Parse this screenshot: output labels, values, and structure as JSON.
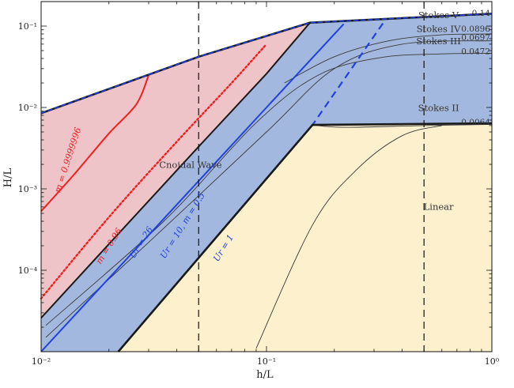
{
  "chart_data": {
    "type": "area",
    "title": "",
    "xlabel": "h/L",
    "ylabel": "H/L",
    "xscale": "log",
    "yscale": "log",
    "xlim": [
      0.01,
      1.0
    ],
    "ylim": [
      1e-05,
      0.2
    ],
    "grid": false,
    "x_tick_labels": [
      "10⁻²",
      "10⁻¹",
      "10⁰"
    ],
    "y_tick_labels": [
      "10⁻¹",
      "10⁻²",
      "10⁻³",
      "10⁻⁴"
    ],
    "vertical_lines": [
      0.05,
      0.5
    ],
    "colors": {
      "cnoidal_fill": "#efc4c8",
      "stokes_fill": "#a3b8df",
      "linear_fill": "#fdf0cc",
      "boundary": "#1a1a1a",
      "ur_lines": "#2040e0",
      "m_lines": "#ee2020",
      "thin_curves": "#3a3a3a"
    },
    "regions": [
      {
        "name": "Cnoidal Wave",
        "label_at": [
          0.046,
          0.0018
        ]
      },
      {
        "name": "Stokes V",
        "label_at": [
          0.58,
          0.125
        ]
      },
      {
        "name": "Stokes IV",
        "label_at": [
          0.58,
          0.085
        ]
      },
      {
        "name": "Stokes III",
        "label_at": [
          0.58,
          0.06
        ]
      },
      {
        "name": "Stokes II",
        "label_at": [
          0.58,
          0.009
        ]
      },
      {
        "name": "Linear",
        "label_at": [
          0.58,
          0.00055
        ]
      }
    ],
    "level_values": [
      {
        "label": "0.14",
        "y": 0.14
      },
      {
        "label": "0.0896",
        "y": 0.0896
      },
      {
        "label": "0.0697",
        "y": 0.0697
      },
      {
        "label": "0.0472",
        "y": 0.0472
      },
      {
        "label": "0.0064",
        "y": 0.0064
      }
    ],
    "upper_boundary": [
      [
        0.01,
        0.0085
      ],
      [
        0.05,
        0.042
      ],
      [
        0.156,
        0.11
      ],
      [
        1.0,
        0.142
      ]
    ],
    "linear_upper_boundary": [
      [
        0.022,
        1e-05
      ],
      [
        0.16,
        0.0061
      ],
      [
        1.0,
        0.0064
      ]
    ],
    "series": [
      {
        "name": "m = 0.9999996",
        "style": "solid",
        "color": "red",
        "points": [
          [
            0.01,
            0.00053
          ],
          [
            0.014,
            0.0015
          ],
          [
            0.02,
            0.0048
          ],
          [
            0.0265,
            0.011
          ],
          [
            0.03,
            0.025
          ]
        ]
      },
      {
        "name": "m = 0.96",
        "style": "dotted",
        "color": "red",
        "points": [
          [
            0.01,
            4.5e-05
          ],
          [
            0.02,
            0.00045
          ],
          [
            0.04,
            0.0038
          ],
          [
            0.07,
            0.02
          ],
          [
            0.1,
            0.06
          ]
        ]
      },
      {
        "name": "Ur = 26",
        "style": "solid",
        "color": "black",
        "points": [
          [
            0.01,
            2.6e-05
          ],
          [
            0.02,
            0.00021
          ],
          [
            0.05,
            0.0033
          ],
          [
            0.1,
            0.026
          ],
          [
            0.156,
            0.11
          ]
        ]
      },
      {
        "name": "Ur = 10, m = 0.5",
        "style": "solid",
        "color": "blue",
        "points": [
          [
            0.01,
            1e-05
          ],
          [
            0.02,
            8e-05
          ],
          [
            0.05,
            0.00125
          ],
          [
            0.1,
            0.01
          ],
          [
            0.22,
            0.106
          ]
        ]
      },
      {
        "name": "Ur = 1",
        "style": "dashed",
        "color": "blue",
        "points": [
          [
            0.022,
            1e-05
          ],
          [
            0.16,
            0.0061
          ],
          [
            0.33,
            0.11
          ]
        ]
      }
    ],
    "curve_labels": [
      {
        "text": "m = 0.9999996",
        "at": [
          0.0135,
          0.0022
        ],
        "angle": -72,
        "color": "red"
      },
      {
        "text": "m = 0.96",
        "at": [
          0.0205,
          0.00019
        ],
        "angle": -58,
        "color": "red"
      },
      {
        "text": "Ur = 26",
        "at": [
          0.0285,
          0.00021
        ],
        "angle": -58,
        "color": "blue"
      },
      {
        "text": "Ur = 10, m = 0.5",
        "at": [
          0.0435,
          0.00034
        ],
        "angle": -58,
        "color": "blue"
      },
      {
        "text": "Ur = 1",
        "at": [
          0.066,
          0.00018
        ],
        "angle": -58,
        "color": "blue"
      }
    ]
  }
}
